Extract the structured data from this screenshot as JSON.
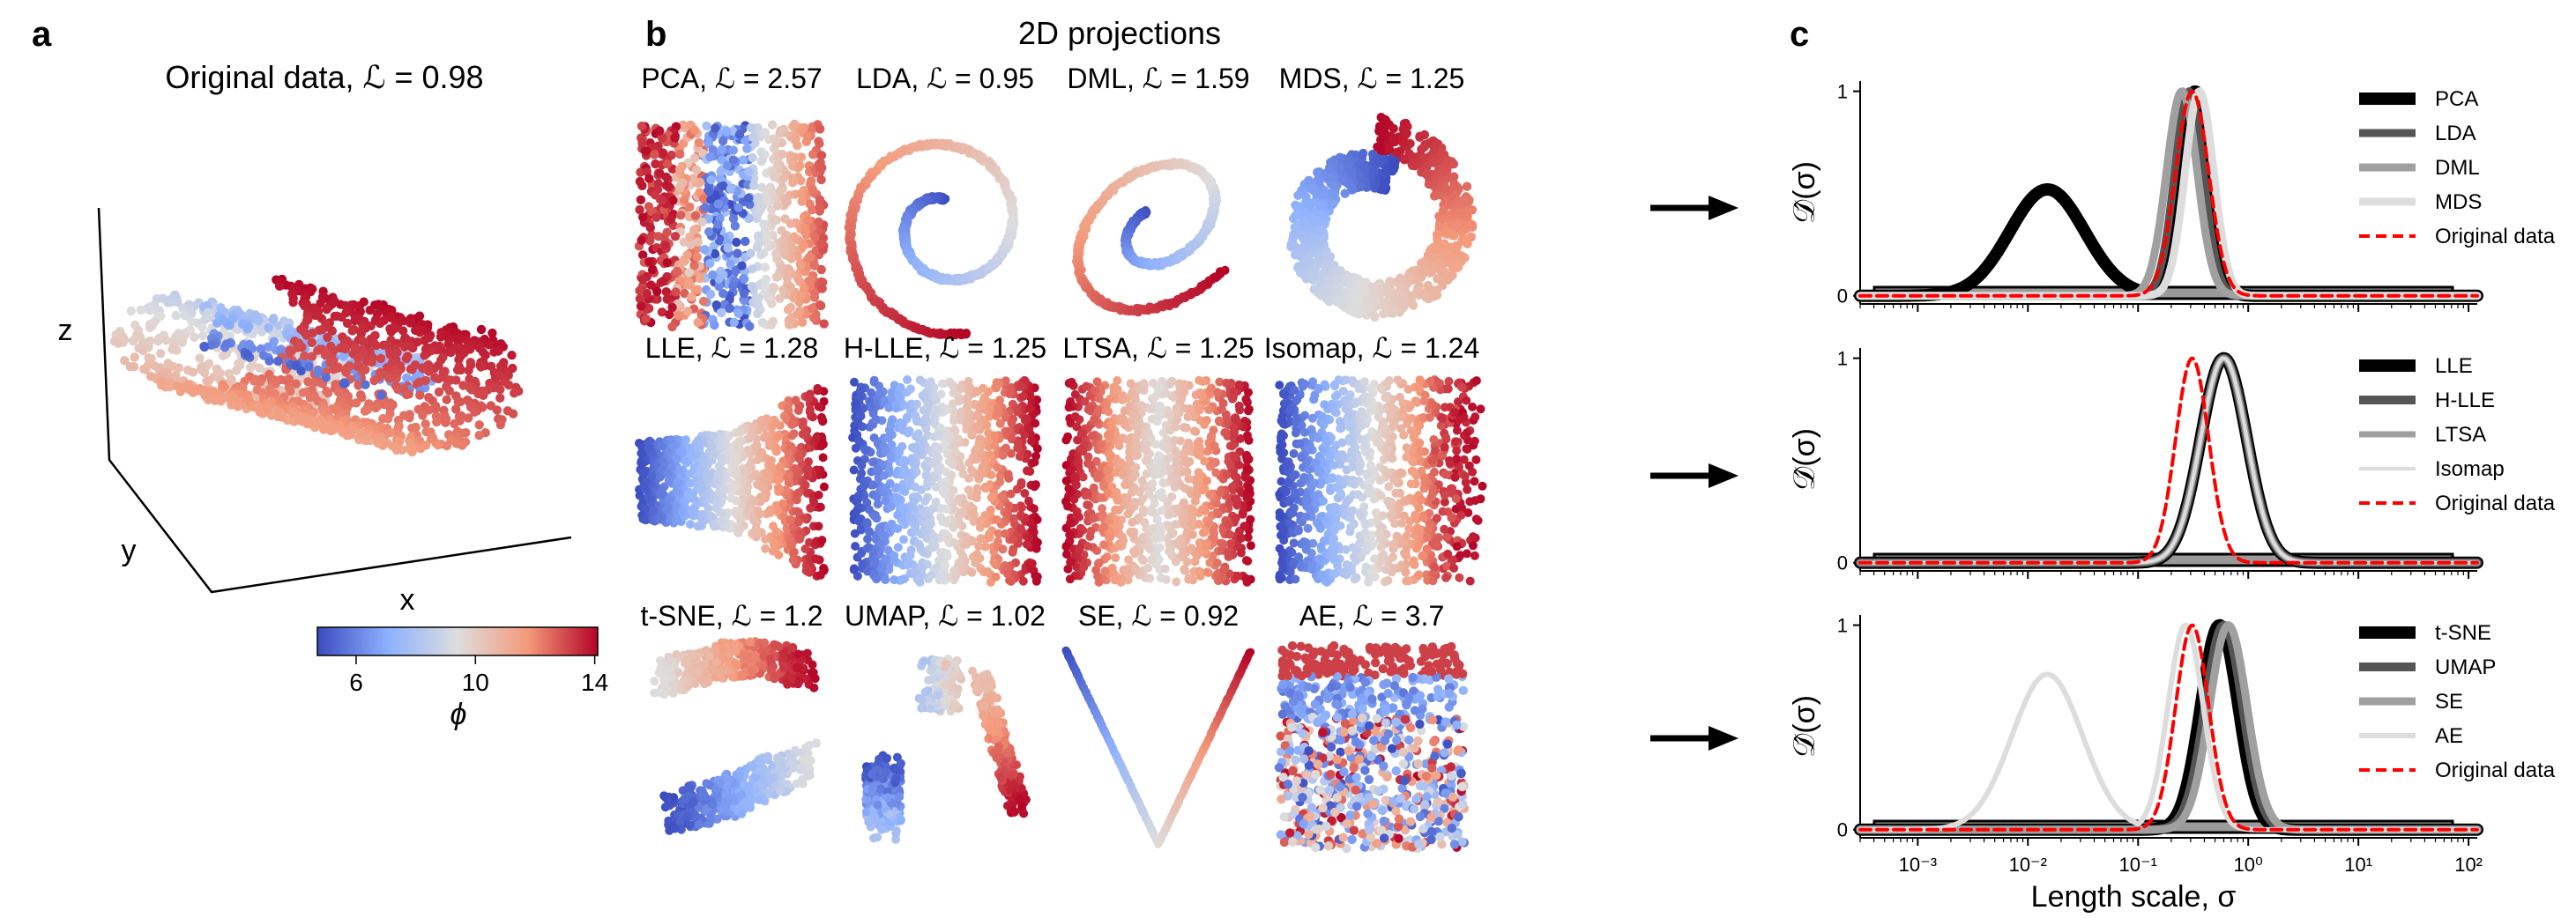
{
  "colors": {
    "cmap_low": "#3b4cc0",
    "cmap_mid": "#dddddd",
    "cmap_high": "#b40426",
    "original_line": "#ff0000"
  },
  "panels": [
    {
      "letter": "a",
      "title": "Original data, ℒ = 0.98"
    },
    {
      "letter": "b",
      "title": "2D projections"
    },
    {
      "letter": "c",
      "title": ""
    }
  ],
  "panel_a": {
    "axis_labels": {
      "x": "x",
      "y": "y",
      "z": "z"
    },
    "colorbar": {
      "label": "ϕ",
      "ticks": [
        "6",
        "10",
        "14"
      ],
      "range": [
        4.7,
        14.1
      ]
    }
  },
  "projections": [
    {
      "id": "pca",
      "title": "PCA, ℒ = 2.57",
      "row": 0,
      "col": 0,
      "shape": "strips-noisy"
    },
    {
      "id": "lda",
      "title": "LDA, ℒ = 0.95",
      "row": 0,
      "col": 1,
      "shape": "spiral-thin"
    },
    {
      "id": "dml",
      "title": "DML, ℒ = 1.59",
      "row": 0,
      "col": 2,
      "shape": "spiral-tilted"
    },
    {
      "id": "mds",
      "title": "MDS, ℒ = 1.25",
      "row": 0,
      "col": 3,
      "shape": "ring-thick"
    },
    {
      "id": "lle",
      "title": "LLE, ℒ = 1.28",
      "row": 1,
      "col": 0,
      "shape": "trapezoid"
    },
    {
      "id": "hlle",
      "title": "H-LLE, ℒ = 1.25",
      "row": 1,
      "col": 1,
      "shape": "rect-gradient"
    },
    {
      "id": "ltsa",
      "title": "LTSA, ℒ = 1.25",
      "row": 1,
      "col": 2,
      "shape": "rect-gradient-rev"
    },
    {
      "id": "isomap",
      "title": "Isomap, ℒ = 1.24",
      "row": 1,
      "col": 3,
      "shape": "rect-ragged"
    },
    {
      "id": "tsne",
      "title": "t-SNE, ℒ = 1.2",
      "row": 2,
      "col": 0,
      "shape": "clusters"
    },
    {
      "id": "umap",
      "title": "UMAP, ℒ = 1.02",
      "row": 2,
      "col": 1,
      "shape": "fragments"
    },
    {
      "id": "se",
      "title": "SE, ℒ = 0.92",
      "row": 2,
      "col": 2,
      "shape": "parabola"
    },
    {
      "id": "ae",
      "title": "AE, ℒ = 3.7",
      "row": 2,
      "col": 3,
      "shape": "block-noisy"
    }
  ],
  "chart_data": [
    {
      "type": "line",
      "xscale": "log",
      "xlim": [
        0.0003,
        120
      ],
      "ylim": [
        -0.04,
        1.05
      ],
      "xlabel": "",
      "ylabel": "𝒟̂(σ)",
      "yticks": [
        0,
        1
      ],
      "legend": "right",
      "series": [
        {
          "name": "PCA",
          "color": "#000000",
          "width": 14,
          "dash": "",
          "components": [
            {
              "amp": 0.52,
              "center": 0.015,
              "width": 0.34
            },
            {
              "amp": 1.0,
              "center": 0.33,
              "width": 0.13
            }
          ]
        },
        {
          "name": "LDA",
          "color": "#555555",
          "width": 9,
          "dash": "",
          "components": [
            {
              "amp": 1.0,
              "center": 0.29,
              "width": 0.13
            }
          ]
        },
        {
          "name": "DML",
          "color": "#a0a0a0",
          "width": 9,
          "dash": "",
          "components": [
            {
              "amp": 1.0,
              "center": 0.25,
              "width": 0.14
            }
          ]
        },
        {
          "name": "MDS",
          "color": "#dddddd",
          "width": 9,
          "dash": "",
          "components": [
            {
              "amp": 1.0,
              "center": 0.36,
              "width": 0.13
            }
          ]
        },
        {
          "name": "Original data",
          "color": "#ff0000",
          "width": 4,
          "dash": "12,7",
          "components": [
            {
              "amp": 1.0,
              "center": 0.31,
              "width": 0.15
            }
          ]
        }
      ]
    },
    {
      "type": "line",
      "xscale": "log",
      "xlim": [
        0.0003,
        120
      ],
      "ylim": [
        -0.04,
        1.05
      ],
      "xlabel": "",
      "ylabel": "𝒟̂(σ)",
      "yticks": [
        0,
        1
      ],
      "legend": "right",
      "series": [
        {
          "name": "LLE",
          "color": "#000000",
          "width": 14,
          "dash": "",
          "components": [
            {
              "amp": 1.0,
              "center": 0.6,
              "width": 0.21
            }
          ]
        },
        {
          "name": "H-LLE",
          "color": "#555555",
          "width": 10,
          "dash": "",
          "components": [
            {
              "amp": 1.0,
              "center": 0.6,
              "width": 0.21
            }
          ]
        },
        {
          "name": "LTSA",
          "color": "#a0a0a0",
          "width": 7,
          "dash": "",
          "components": [
            {
              "amp": 1.0,
              "center": 0.6,
              "width": 0.21
            }
          ]
        },
        {
          "name": "Isomap",
          "color": "#dddddd",
          "width": 4,
          "dash": "",
          "components": [
            {
              "amp": 1.0,
              "center": 0.6,
              "width": 0.21
            }
          ]
        },
        {
          "name": "Original data",
          "color": "#ff0000",
          "width": 4,
          "dash": "12,7",
          "components": [
            {
              "amp": 1.0,
              "center": 0.31,
              "width": 0.15
            }
          ]
        }
      ]
    },
    {
      "type": "line",
      "xscale": "log",
      "xlim": [
        0.0003,
        120
      ],
      "ylim": [
        -0.04,
        1.05
      ],
      "xlabel": "Length scale, σ",
      "ylabel": "𝒟̂(σ)",
      "yticks": [
        0,
        1
      ],
      "legend": "right",
      "xticks": [
        {
          "value": 0.001,
          "label": "10⁻³"
        },
        {
          "value": 0.01,
          "label": "10⁻²"
        },
        {
          "value": 0.1,
          "label": "10⁻¹"
        },
        {
          "value": 1,
          "label": "10⁰"
        },
        {
          "value": 10,
          "label": "10¹"
        },
        {
          "value": 100,
          "label": "10²"
        }
      ],
      "series": [
        {
          "name": "t-SNE",
          "color": "#000000",
          "width": 14,
          "dash": "",
          "components": [
            {
              "amp": 1.0,
              "center": 0.55,
              "width": 0.17
            }
          ]
        },
        {
          "name": "UMAP",
          "color": "#555555",
          "width": 10,
          "dash": "",
          "components": [
            {
              "amp": 1.0,
              "center": 0.6,
              "width": 0.17
            }
          ]
        },
        {
          "name": "SE",
          "color": "#a0a0a0",
          "width": 9,
          "dash": "",
          "components": [
            {
              "amp": 1.0,
              "center": 0.66,
              "width": 0.17
            }
          ]
        },
        {
          "name": "AE",
          "color": "#dddddd",
          "width": 6,
          "dash": "",
          "components": [
            {
              "amp": 0.76,
              "center": 0.015,
              "width": 0.32
            },
            {
              "amp": 1.0,
              "center": 0.27,
              "width": 0.16
            }
          ]
        },
        {
          "name": "Original data",
          "color": "#ff0000",
          "width": 4,
          "dash": "12,7",
          "components": [
            {
              "amp": 1.0,
              "center": 0.31,
              "width": 0.15
            }
          ]
        }
      ]
    }
  ]
}
